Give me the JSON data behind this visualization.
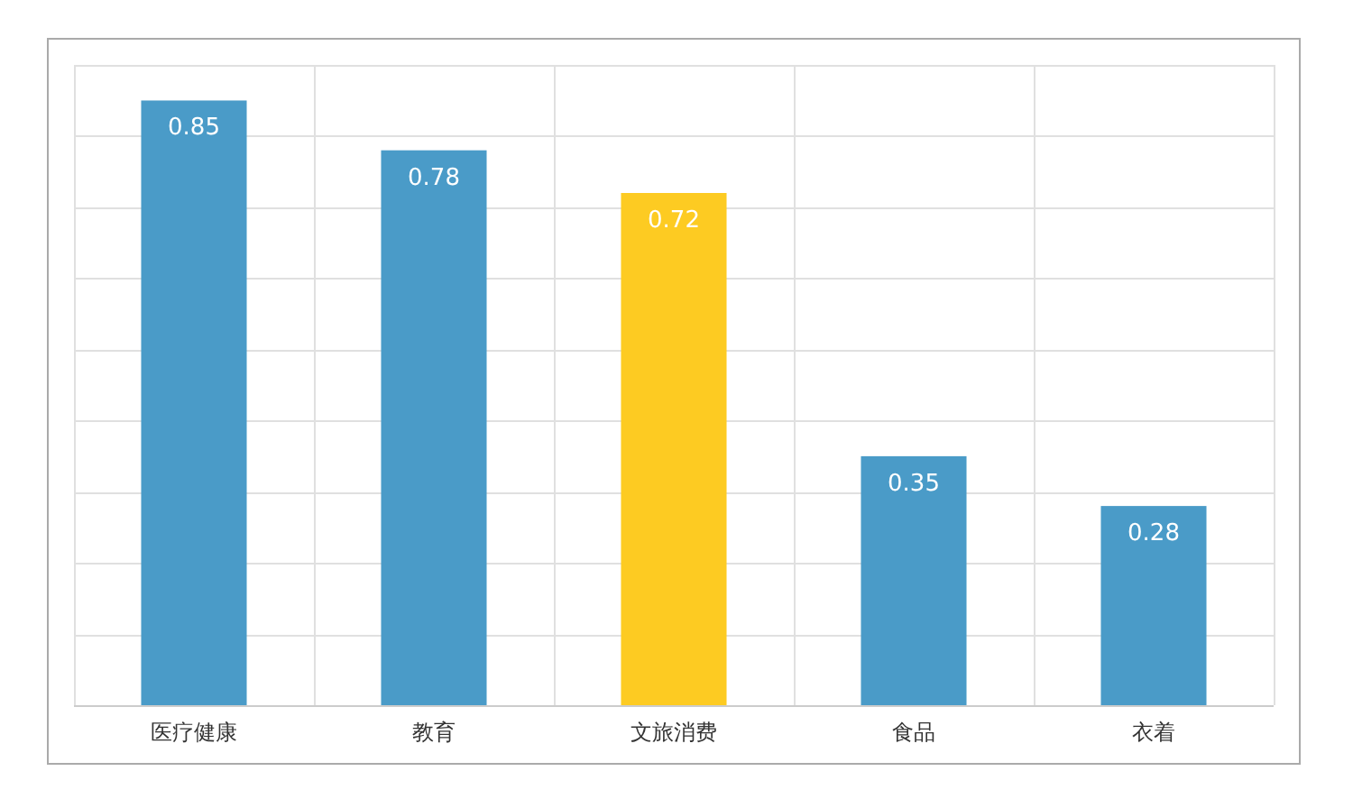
{
  "chart_data": {
    "type": "bar",
    "categories": [
      "医疗健康",
      "教育",
      "文旅消费",
      "食品",
      "衣着"
    ],
    "values": [
      0.85,
      0.78,
      0.72,
      0.35,
      0.28
    ],
    "colors": [
      "#4a9bc8",
      "#4a9bc8",
      "#fdcb22",
      "#4a9bc8",
      "#4a9bc8"
    ],
    "ylim": [
      0,
      0.9
    ],
    "yticks": [
      {
        "value": 0,
        "label": null
      },
      {
        "value": 0.1,
        "label": null
      },
      {
        "value": 0.2,
        "label": null
      },
      {
        "value": 0.3,
        "label": null
      },
      {
        "value": 0.4,
        "label": null
      },
      {
        "value": 0.5,
        "label": null
      },
      {
        "value": 0.6,
        "label": null
      },
      {
        "value": 0.7,
        "label": null
      },
      {
        "value": 0.8,
        "label": null
      },
      {
        "value": 0.9,
        "label": null
      }
    ],
    "tick_labels": "x",
    "grid": true,
    "data_labels": true
  }
}
